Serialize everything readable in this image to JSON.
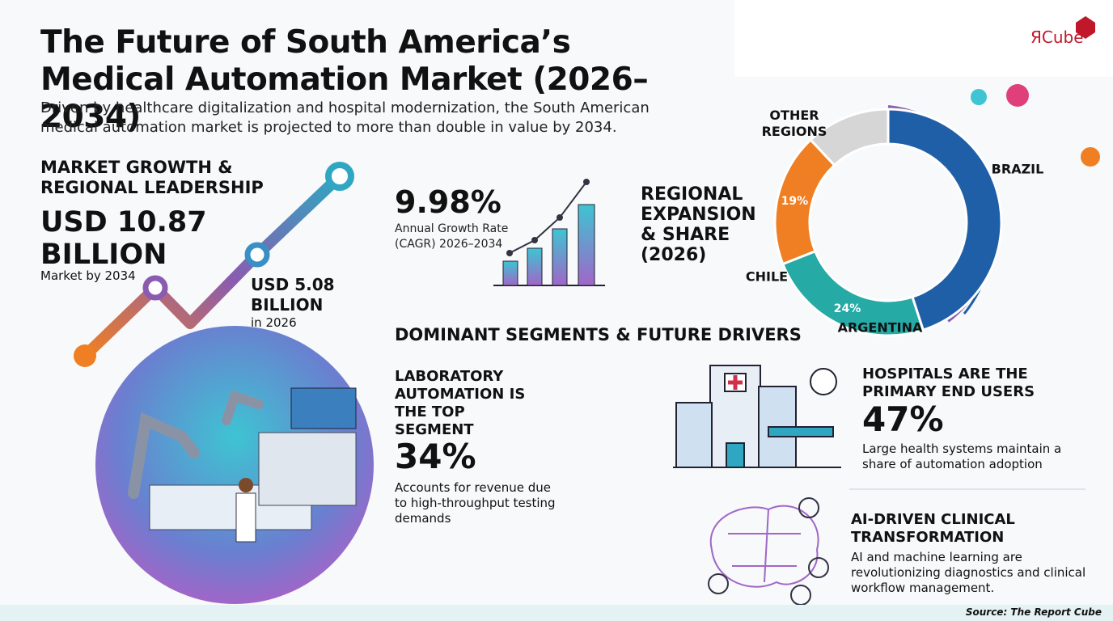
{
  "header": {
    "title": "The Future of South America’s Medical Automation Market (2026–2034)",
    "subtitle": "Driven by healthcare digitalization and hospital modernization, the South American medical automation market is projected to more than double in value by 2034.",
    "logo": "ЯCube"
  },
  "growth": {
    "heading": "MARKET GROWTH & REGIONAL LEADERSHIP",
    "value_2034": "USD 10.87 BILLION",
    "label_2034": "Market by 2034",
    "value_2026": "USD 5.08 BILLION",
    "label_2026": "in 2026"
  },
  "cagr": {
    "value": "9.98%",
    "label": "Annual Growth Rate (CAGR) 2026–2034"
  },
  "regional": {
    "heading": "REGIONAL EXPANSION & SHARE (2026)"
  },
  "chart_data": {
    "type": "donut",
    "categories": [
      "BRAZIL",
      "ARGENTINA",
      "CHILE",
      "OTHER REGIONS"
    ],
    "values": [
      45,
      24,
      19,
      12
    ],
    "value_labels": [
      null,
      "24%",
      "19%",
      null
    ],
    "colors": [
      "#1f5fa8",
      "#26aaa6",
      "#f07f23",
      "#d6d6d6"
    ]
  },
  "segments": {
    "heading": "DOMINANT SEGMENTS & FUTURE DRIVERS",
    "lab": {
      "heading": "LABORATORY AUTOMATION IS THE TOP SEGMENT",
      "value": "34%",
      "text": "Accounts for revenue due to high-throughput testing demands"
    },
    "hospitals": {
      "heading": "HOSPITALS ARE THE PRIMARY END USERS",
      "value": "47%",
      "text": "Large health systems maintain a share of automation adoption"
    },
    "ai": {
      "heading": "AI-DRIVEN CLINICAL TRANSFORMATION",
      "text": "AI and machine learning are revolutionizing diagnostics and clinical workflow management."
    }
  },
  "footer": {
    "source": "Source: The Report Cube"
  }
}
